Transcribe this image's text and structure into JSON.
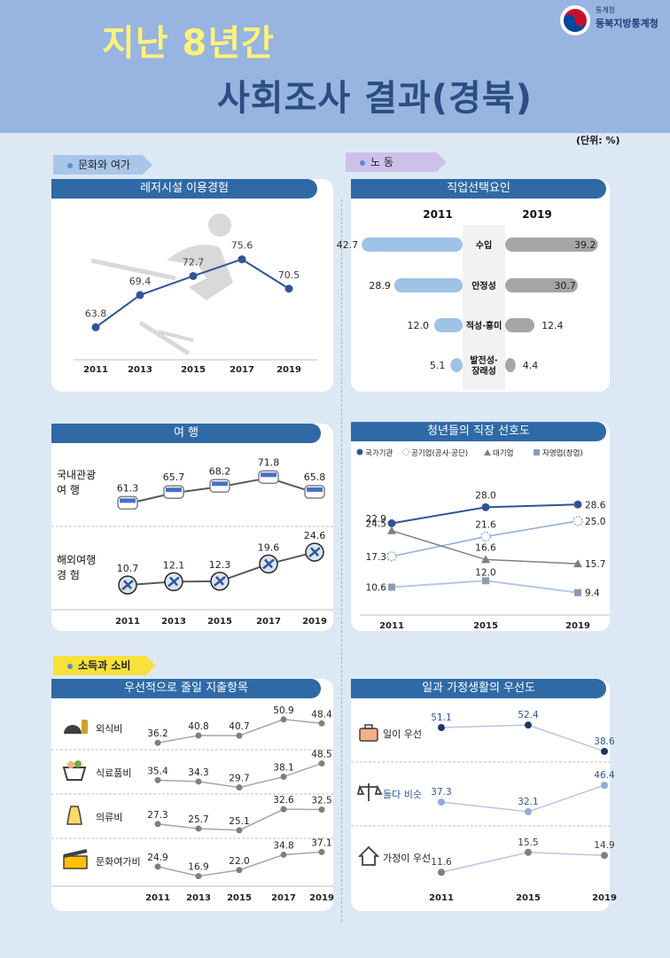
{
  "header": {
    "title_line1": "지난 8년간",
    "title_line2": "사회조사 결과(경북)",
    "org_small": "통계청",
    "org_name": "동북지방통계청",
    "unit": "(단위: %)"
  },
  "sections": {
    "culture": "문화와 여가",
    "labor": "노  동",
    "income": "소득과 소비"
  },
  "colors": {
    "header_bg": "#98b4e0",
    "panel_title_bg": "#2f6aa6",
    "line_blue": "#2f5597",
    "bar_light_blue": "#9dc3e6",
    "bar_gray": "#a6a6a6",
    "title_yellow": "#fff27a",
    "title_navy": "#2a4e83"
  },
  "chart_data": [
    {
      "id": "leisure",
      "type": "line",
      "title": "레저시설 이용경험",
      "x": [
        "2011",
        "2013",
        "2015",
        "2017",
        "2019"
      ],
      "values": [
        63.8,
        69.4,
        72.7,
        75.6,
        70.5
      ],
      "value_labels": [
        "63.8",
        "69.4",
        "72.7",
        "75.6",
        "70.5"
      ]
    },
    {
      "id": "job_factor",
      "type": "bar",
      "title": "직업선택요인",
      "left_year": "2011",
      "right_year": "2019",
      "categories": [
        "수입",
        "안정성",
        "적성·흥미",
        "발전성·장래성"
      ],
      "category_lines": [
        [
          "수입"
        ],
        [
          "안정성"
        ],
        [
          "적성·흥미"
        ],
        [
          "발전성·",
          "장래성"
        ]
      ],
      "series": [
        {
          "name": "2011",
          "values": [
            42.7,
            28.9,
            12.0,
            5.1
          ],
          "labels": [
            "42.7",
            "28.9",
            "12.0",
            "5.1"
          ]
        },
        {
          "name": "2019",
          "values": [
            39.2,
            30.7,
            12.4,
            4.4
          ],
          "labels": [
            "39.2",
            "30.7",
            "12.4",
            "4.4"
          ]
        }
      ]
    },
    {
      "id": "travel",
      "type": "line",
      "title": "여  행",
      "x": [
        "2011",
        "2013",
        "2015",
        "2017",
        "2019"
      ],
      "series": [
        {
          "name": "국내관광",
          "name_lines": [
            "국내관광",
            "여    행"
          ],
          "values": [
            61.3,
            65.7,
            68.2,
            71.8,
            65.8
          ],
          "labels": [
            "61.3",
            "65.7",
            "68.2",
            "71.8",
            "65.8"
          ]
        },
        {
          "name": "해외여행",
          "name_lines": [
            "해외여행",
            "경    험"
          ],
          "values": [
            10.7,
            12.1,
            12.3,
            19.6,
            24.6
          ],
          "labels": [
            "10.7",
            "12.1",
            "12.3",
            "19.6",
            "24.6"
          ]
        }
      ]
    },
    {
      "id": "youth_job",
      "type": "line",
      "title": "청년들의 직장 선호도",
      "x": [
        "2011",
        "2015",
        "2019"
      ],
      "series": [
        {
          "name": "국가기관",
          "marker": "circle",
          "values": [
            24.5,
            28.0,
            28.6
          ],
          "labels": [
            "24.5",
            "28.0",
            "28.6"
          ]
        },
        {
          "name": "공기업(공사·공단)",
          "marker": "circle-dashed",
          "values": [
            17.3,
            21.6,
            25.0
          ],
          "labels": [
            "17.3",
            "21.6",
            "25.0"
          ]
        },
        {
          "name": "대기업",
          "marker": "triangle",
          "values": [
            22.9,
            16.6,
            15.7
          ],
          "labels": [
            "22.9",
            "16.6",
            "15.7"
          ]
        },
        {
          "name": "자영업(창업)",
          "marker": "square",
          "values": [
            10.6,
            12.0,
            9.4
          ],
          "labels": [
            "10.6",
            "12.0",
            "9.4"
          ]
        }
      ]
    },
    {
      "id": "spending_cut",
      "type": "line",
      "title": "우선적으로 줄일 지출항목",
      "x": [
        "2011",
        "2013",
        "2015",
        "2017",
        "2019"
      ],
      "series": [
        {
          "name": "외식비",
          "icon": "dining-icon",
          "values": [
            36.2,
            40.8,
            40.7,
            50.9,
            48.4
          ],
          "labels": [
            "36.2",
            "40.8",
            "40.7",
            "50.9",
            "48.4"
          ]
        },
        {
          "name": "식료품비",
          "icon": "grocery-icon",
          "values": [
            35.4,
            34.3,
            29.7,
            38.1,
            48.5
          ],
          "labels": [
            "35.4",
            "34.3",
            "29.7",
            "38.1",
            "48.5"
          ]
        },
        {
          "name": "의류비",
          "icon": "clothing-icon",
          "values": [
            27.3,
            25.7,
            25.1,
            32.6,
            32.5
          ],
          "labels": [
            "27.3",
            "25.7",
            "25.1",
            "32.6",
            "32.5"
          ]
        },
        {
          "name": "문화여가비",
          "icon": "film-icon",
          "values": [
            24.9,
            16.9,
            22.0,
            34.8,
            37.1
          ],
          "labels": [
            "24.9",
            "16.9",
            "22.0",
            "34.8",
            "37.1"
          ]
        }
      ]
    },
    {
      "id": "work_family",
      "type": "line",
      "title": "일과 가정생활의 우선도",
      "x": [
        "2011",
        "2015",
        "2019"
      ],
      "series": [
        {
          "name": "일이 우선",
          "icon": "briefcase-icon",
          "color": "#1f3864",
          "values": [
            51.1,
            52.4,
            38.6
          ],
          "labels": [
            "51.1",
            "52.4",
            "38.6"
          ]
        },
        {
          "name": "둘다 비슷",
          "icon": "balance-icon",
          "color": "#8faadc",
          "values": [
            37.3,
            32.1,
            46.4
          ],
          "labels": [
            "37.3",
            "32.1",
            "46.4"
          ]
        },
        {
          "name": "가정이 우선",
          "icon": "home-icon",
          "color": "#7f7f7f",
          "values": [
            11.6,
            15.5,
            14.9
          ],
          "labels": [
            "11.6",
            "15.5",
            "14.9"
          ]
        }
      ]
    }
  ]
}
